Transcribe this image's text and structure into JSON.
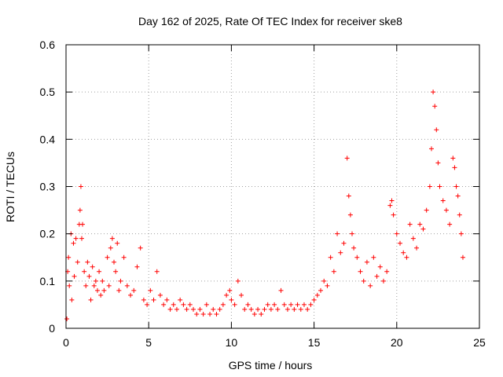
{
  "chart_data": {
    "type": "scatter",
    "title": "Day 162 of 2025, Rate Of TEC Index for receiver ske8",
    "xlabel": "GPS time / hours",
    "ylabel": "ROTI / TECUs",
    "xlim": [
      0,
      25
    ],
    "ylim": [
      0,
      0.6
    ],
    "xticks": [
      0,
      5,
      10,
      15,
      20,
      25
    ],
    "yticks": [
      0,
      0.1,
      0.2,
      0.3,
      0.4,
      0.5,
      0.6
    ],
    "xtick_labels": [
      "0",
      "5",
      "10",
      "15",
      "20",
      "25"
    ],
    "ytick_labels": [
      "0",
      "0.1",
      "0.2",
      "0.3",
      "0.4",
      "0.5",
      "0.6"
    ],
    "grid": true,
    "marker": "+",
    "color": "#ff0000",
    "series": [
      {
        "name": "ske8",
        "points": [
          [
            0.05,
            0.02
          ],
          [
            0.1,
            0.12
          ],
          [
            0.15,
            0.15
          ],
          [
            0.2,
            0.09
          ],
          [
            0.3,
            0.2
          ],
          [
            0.35,
            0.06
          ],
          [
            0.45,
            0.18
          ],
          [
            0.5,
            0.11
          ],
          [
            0.6,
            0.19
          ],
          [
            0.7,
            0.14
          ],
          [
            0.8,
            0.22
          ],
          [
            0.85,
            0.25
          ],
          [
            0.9,
            0.3
          ],
          [
            0.95,
            0.19
          ],
          [
            1.0,
            0.22
          ],
          [
            1.1,
            0.12
          ],
          [
            1.2,
            0.09
          ],
          [
            1.3,
            0.14
          ],
          [
            1.4,
            0.11
          ],
          [
            1.5,
            0.06
          ],
          [
            1.6,
            0.13
          ],
          [
            1.7,
            0.09
          ],
          [
            1.8,
            0.1
          ],
          [
            1.9,
            0.08
          ],
          [
            2.0,
            0.12
          ],
          [
            2.1,
            0.07
          ],
          [
            2.2,
            0.1
          ],
          [
            2.3,
            0.08
          ],
          [
            2.5,
            0.15
          ],
          [
            2.6,
            0.09
          ],
          [
            2.7,
            0.17
          ],
          [
            2.8,
            0.19
          ],
          [
            2.9,
            0.14
          ],
          [
            3.0,
            0.12
          ],
          [
            3.1,
            0.18
          ],
          [
            3.2,
            0.08
          ],
          [
            3.3,
            0.1
          ],
          [
            3.5,
            0.15
          ],
          [
            3.7,
            0.09
          ],
          [
            3.9,
            0.07
          ],
          [
            4.1,
            0.08
          ],
          [
            4.3,
            0.13
          ],
          [
            4.5,
            0.17
          ],
          [
            4.7,
            0.06
          ],
          [
            4.9,
            0.05
          ],
          [
            5.1,
            0.08
          ],
          [
            5.3,
            0.06
          ],
          [
            5.5,
            0.12
          ],
          [
            5.7,
            0.07
          ],
          [
            5.9,
            0.05
          ],
          [
            6.1,
            0.06
          ],
          [
            6.3,
            0.04
          ],
          [
            6.5,
            0.05
          ],
          [
            6.7,
            0.04
          ],
          [
            6.9,
            0.06
          ],
          [
            7.1,
            0.05
          ],
          [
            7.3,
            0.04
          ],
          [
            7.5,
            0.05
          ],
          [
            7.7,
            0.04
          ],
          [
            7.9,
            0.03
          ],
          [
            8.1,
            0.04
          ],
          [
            8.3,
            0.03
          ],
          [
            8.5,
            0.05
          ],
          [
            8.7,
            0.03
          ],
          [
            8.9,
            0.04
          ],
          [
            9.1,
            0.03
          ],
          [
            9.3,
            0.04
          ],
          [
            9.5,
            0.05
          ],
          [
            9.7,
            0.07
          ],
          [
            9.9,
            0.08
          ],
          [
            10.0,
            0.06
          ],
          [
            10.2,
            0.05
          ],
          [
            10.4,
            0.1
          ],
          [
            10.6,
            0.07
          ],
          [
            10.8,
            0.04
          ],
          [
            11.0,
            0.05
          ],
          [
            11.2,
            0.04
          ],
          [
            11.4,
            0.03
          ],
          [
            11.6,
            0.04
          ],
          [
            11.8,
            0.03
          ],
          [
            12.0,
            0.04
          ],
          [
            12.2,
            0.05
          ],
          [
            12.4,
            0.04
          ],
          [
            12.6,
            0.05
          ],
          [
            12.8,
            0.04
          ],
          [
            13.0,
            0.08
          ],
          [
            13.2,
            0.05
          ],
          [
            13.4,
            0.04
          ],
          [
            13.6,
            0.05
          ],
          [
            13.8,
            0.04
          ],
          [
            14.0,
            0.05
          ],
          [
            14.2,
            0.04
          ],
          [
            14.4,
            0.05
          ],
          [
            14.6,
            0.04
          ],
          [
            14.8,
            0.05
          ],
          [
            15.0,
            0.06
          ],
          [
            15.2,
            0.07
          ],
          [
            15.4,
            0.08
          ],
          [
            15.6,
            0.1
          ],
          [
            15.8,
            0.09
          ],
          [
            16.0,
            0.15
          ],
          [
            16.2,
            0.12
          ],
          [
            16.4,
            0.2
          ],
          [
            16.6,
            0.16
          ],
          [
            16.8,
            0.18
          ],
          [
            17.0,
            0.36
          ],
          [
            17.1,
            0.28
          ],
          [
            17.2,
            0.24
          ],
          [
            17.3,
            0.2
          ],
          [
            17.4,
            0.17
          ],
          [
            17.6,
            0.15
          ],
          [
            17.8,
            0.12
          ],
          [
            18.0,
            0.1
          ],
          [
            18.2,
            0.14
          ],
          [
            18.4,
            0.09
          ],
          [
            18.6,
            0.15
          ],
          [
            18.8,
            0.11
          ],
          [
            19.0,
            0.13
          ],
          [
            19.2,
            0.1
          ],
          [
            19.4,
            0.12
          ],
          [
            19.6,
            0.26
          ],
          [
            19.7,
            0.27
          ],
          [
            19.8,
            0.24
          ],
          [
            20.0,
            0.2
          ],
          [
            20.2,
            0.18
          ],
          [
            20.4,
            0.16
          ],
          [
            20.6,
            0.15
          ],
          [
            20.8,
            0.22
          ],
          [
            21.0,
            0.19
          ],
          [
            21.2,
            0.17
          ],
          [
            21.4,
            0.22
          ],
          [
            21.6,
            0.21
          ],
          [
            21.8,
            0.25
          ],
          [
            22.0,
            0.3
          ],
          [
            22.1,
            0.38
          ],
          [
            22.2,
            0.5
          ],
          [
            22.3,
            0.47
          ],
          [
            22.4,
            0.42
          ],
          [
            22.5,
            0.35
          ],
          [
            22.6,
            0.3
          ],
          [
            22.8,
            0.27
          ],
          [
            23.0,
            0.25
          ],
          [
            23.2,
            0.22
          ],
          [
            23.4,
            0.36
          ],
          [
            23.5,
            0.34
          ],
          [
            23.6,
            0.3
          ],
          [
            23.7,
            0.28
          ],
          [
            23.8,
            0.24
          ],
          [
            23.9,
            0.2
          ],
          [
            24.0,
            0.15
          ]
        ]
      }
    ]
  }
}
